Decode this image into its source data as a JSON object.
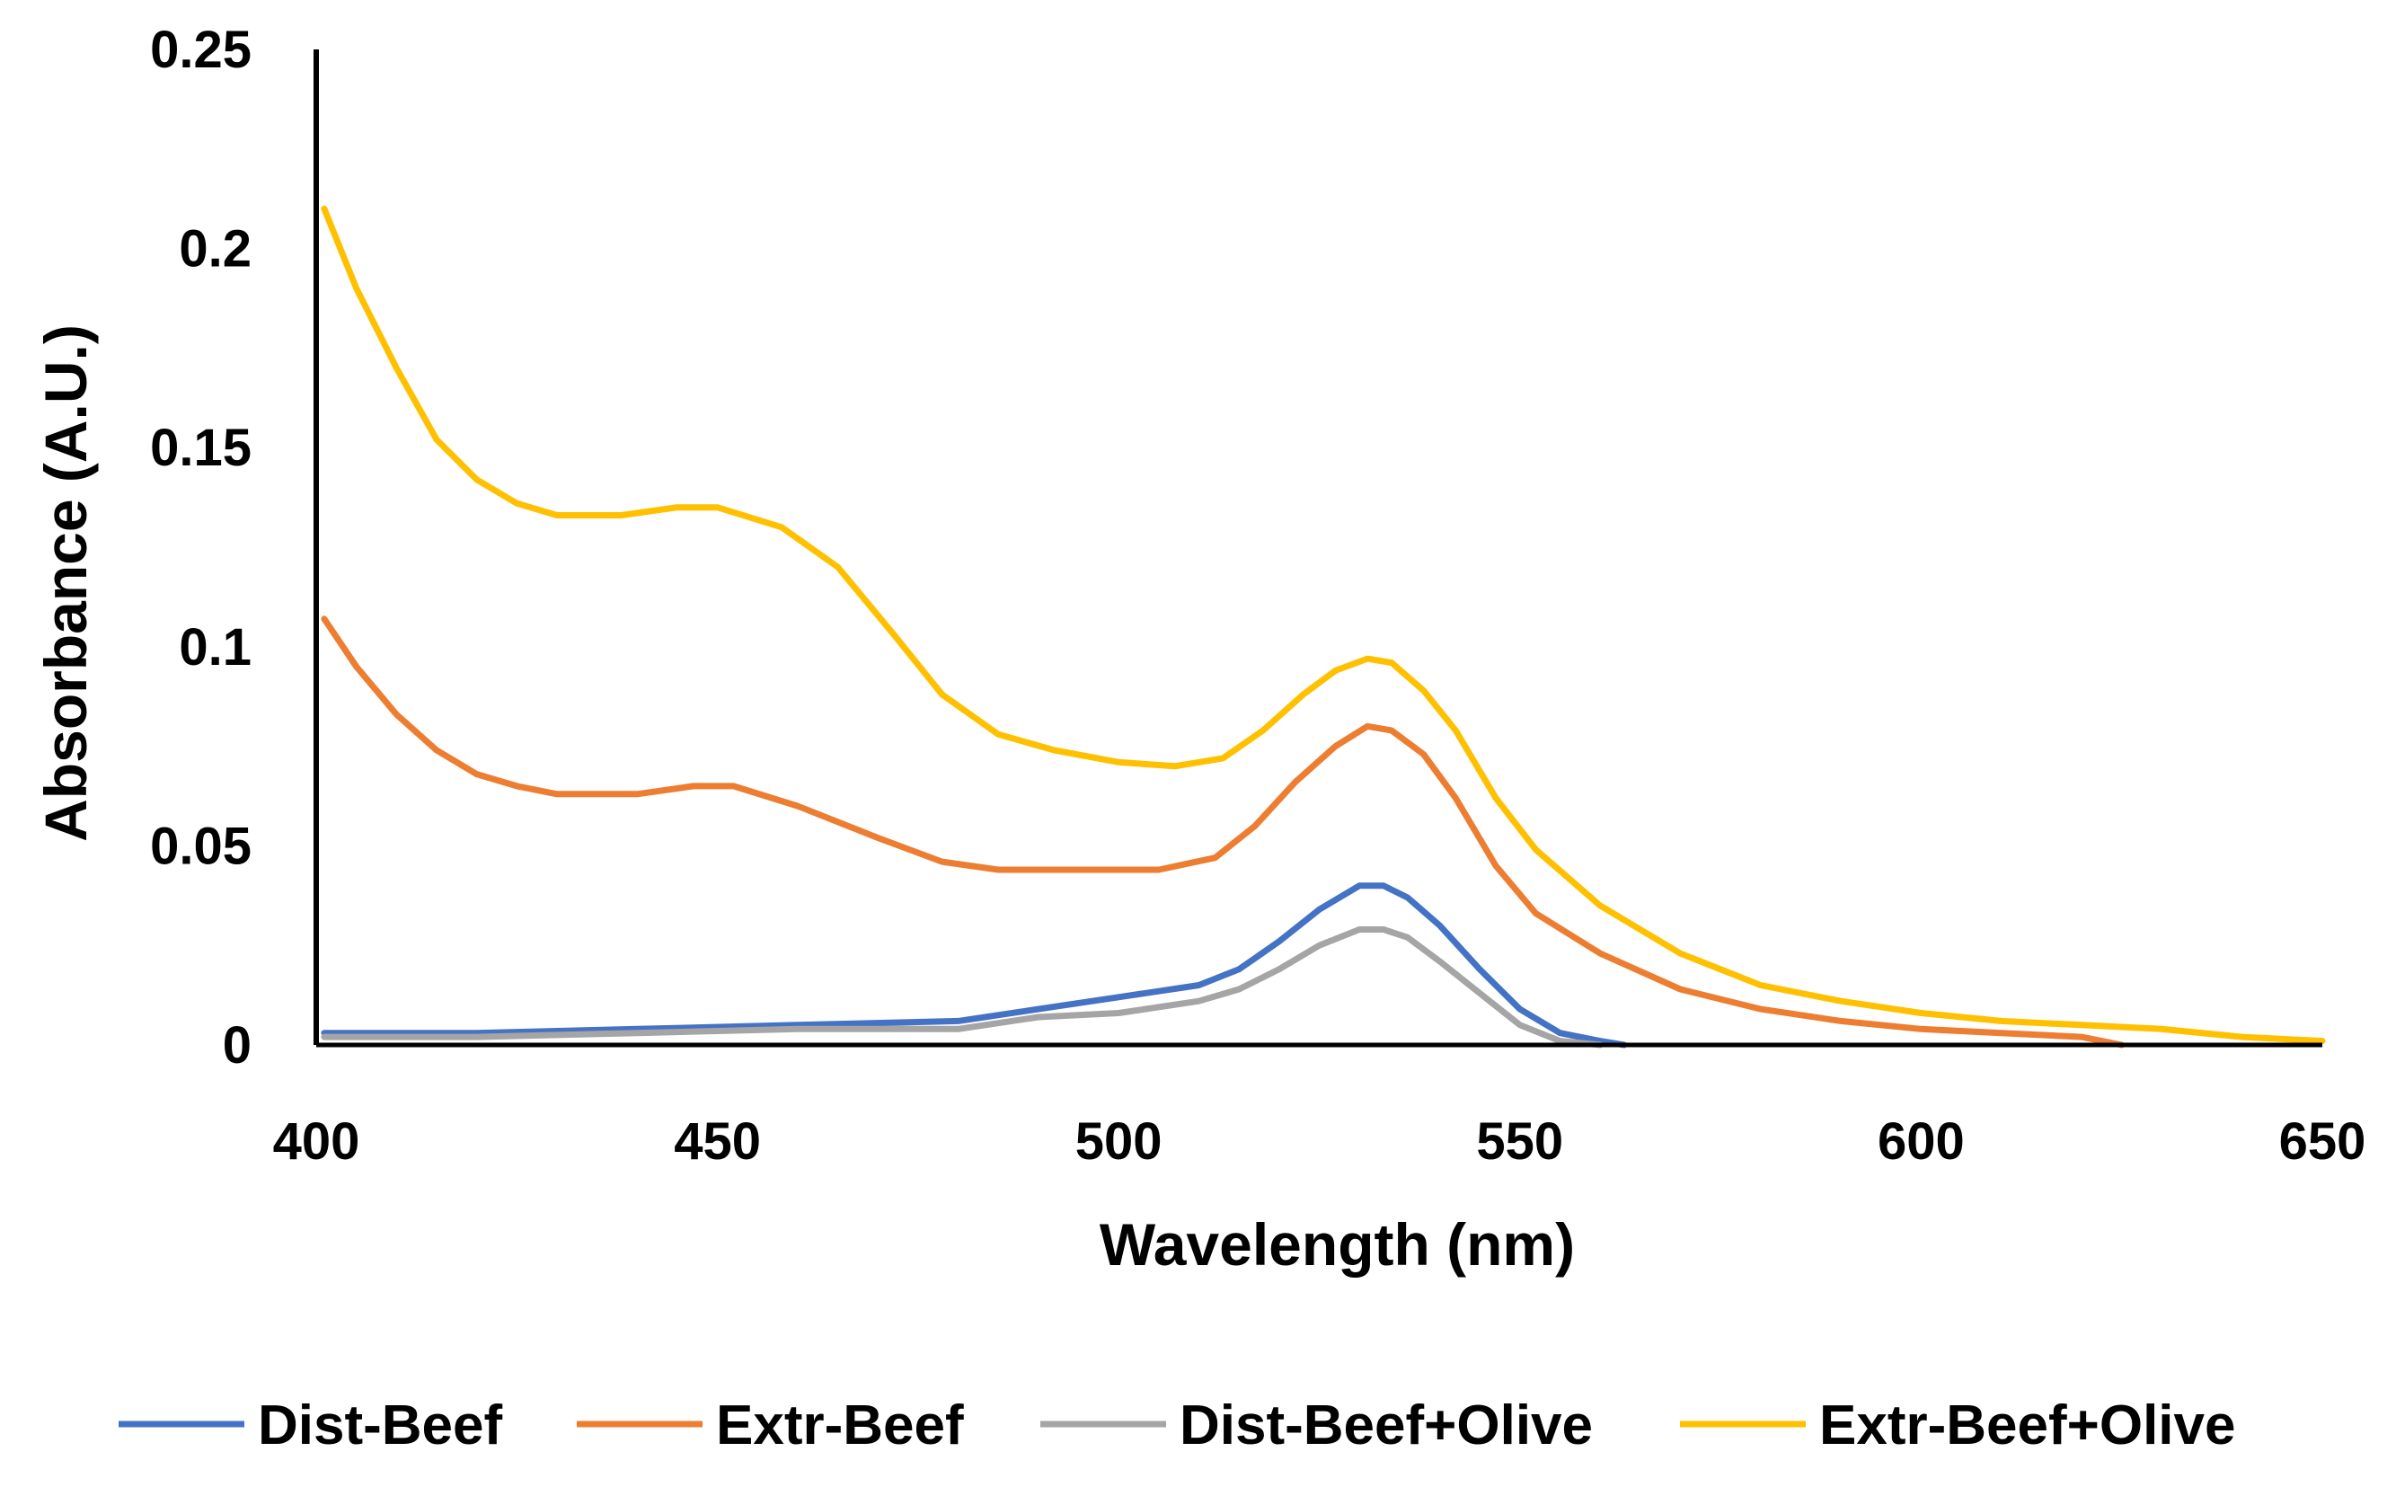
{
  "chart_data": {
    "type": "line",
    "title": "",
    "xlabel": "Wavelength (nm)",
    "ylabel": "Absorbance (A.U.)",
    "xlim": [
      400,
      650
    ],
    "ylim": [
      0,
      0.25
    ],
    "x_ticks": [
      "400",
      "450",
      "500",
      "550",
      "600",
      "650"
    ],
    "x_tick_values": [
      400,
      450,
      500,
      550,
      600,
      650
    ],
    "y_ticks": [
      "0",
      "0.05",
      "0.1",
      "0.15",
      "0.2",
      "0.25"
    ],
    "y_tick_values": [
      0,
      0.05,
      0.1,
      0.15,
      0.2,
      0.25
    ],
    "grid": false,
    "legend_position": "bottom",
    "series": [
      {
        "name": "Dist-Beef",
        "color": "#4472C4",
        "points": [
          [
            401,
            0.003
          ],
          [
            420,
            0.003
          ],
          [
            440,
            0.004
          ],
          [
            460,
            0.005
          ],
          [
            480,
            0.006
          ],
          [
            490,
            0.009
          ],
          [
            500,
            0.012
          ],
          [
            510,
            0.015
          ],
          [
            515,
            0.019
          ],
          [
            520,
            0.026
          ],
          [
            525,
            0.034
          ],
          [
            530,
            0.04
          ],
          [
            533,
            0.04
          ],
          [
            536,
            0.037
          ],
          [
            540,
            0.03
          ],
          [
            545,
            0.019
          ],
          [
            550,
            0.009
          ],
          [
            555,
            0.003
          ],
          [
            560,
            0.001
          ],
          [
            563,
            0.0
          ]
        ]
      },
      {
        "name": "Extr-Beef",
        "color": "#ED7D31",
        "points": [
          [
            401,
            0.107
          ],
          [
            405,
            0.095
          ],
          [
            410,
            0.083
          ],
          [
            415,
            0.074
          ],
          [
            420,
            0.068
          ],
          [
            425,
            0.065
          ],
          [
            430,
            0.063
          ],
          [
            440,
            0.063
          ],
          [
            447,
            0.065
          ],
          [
            452,
            0.065
          ],
          [
            460,
            0.06
          ],
          [
            470,
            0.052
          ],
          [
            478,
            0.046
          ],
          [
            485,
            0.044
          ],
          [
            495,
            0.044
          ],
          [
            505,
            0.044
          ],
          [
            512,
            0.047
          ],
          [
            517,
            0.055
          ],
          [
            522,
            0.066
          ],
          [
            527,
            0.075
          ],
          [
            531,
            0.08
          ],
          [
            534,
            0.079
          ],
          [
            538,
            0.073
          ],
          [
            542,
            0.062
          ],
          [
            547,
            0.045
          ],
          [
            552,
            0.033
          ],
          [
            560,
            0.023
          ],
          [
            570,
            0.014
          ],
          [
            580,
            0.009
          ],
          [
            590,
            0.006
          ],
          [
            600,
            0.004
          ],
          [
            610,
            0.003
          ],
          [
            620,
            0.002
          ],
          [
            625,
            0.0
          ]
        ]
      },
      {
        "name": "Dist-Beef+Olive",
        "color": "#A5A5A5",
        "points": [
          [
            401,
            0.002
          ],
          [
            420,
            0.002
          ],
          [
            440,
            0.003
          ],
          [
            460,
            0.004
          ],
          [
            480,
            0.004
          ],
          [
            490,
            0.007
          ],
          [
            500,
            0.008
          ],
          [
            510,
            0.011
          ],
          [
            515,
            0.014
          ],
          [
            520,
            0.019
          ],
          [
            525,
            0.025
          ],
          [
            530,
            0.029
          ],
          [
            533,
            0.029
          ],
          [
            536,
            0.027
          ],
          [
            540,
            0.021
          ],
          [
            545,
            0.013
          ],
          [
            550,
            0.005
          ],
          [
            555,
            0.001
          ],
          [
            560,
            0.0
          ]
        ]
      },
      {
        "name": "Extr-Beef+Olive",
        "color": "#FFC000",
        "points": [
          [
            401,
            0.21
          ],
          [
            405,
            0.19
          ],
          [
            410,
            0.17
          ],
          [
            415,
            0.152
          ],
          [
            420,
            0.142
          ],
          [
            425,
            0.136
          ],
          [
            430,
            0.133
          ],
          [
            438,
            0.133
          ],
          [
            445,
            0.135
          ],
          [
            450,
            0.135
          ],
          [
            458,
            0.13
          ],
          [
            465,
            0.12
          ],
          [
            472,
            0.103
          ],
          [
            478,
            0.088
          ],
          [
            485,
            0.078
          ],
          [
            492,
            0.074
          ],
          [
            500,
            0.071
          ],
          [
            507,
            0.07
          ],
          [
            513,
            0.072
          ],
          [
            518,
            0.079
          ],
          [
            523,
            0.088
          ],
          [
            527,
            0.094
          ],
          [
            531,
            0.097
          ],
          [
            534,
            0.096
          ],
          [
            538,
            0.089
          ],
          [
            542,
            0.079
          ],
          [
            547,
            0.062
          ],
          [
            552,
            0.049
          ],
          [
            560,
            0.035
          ],
          [
            570,
            0.023
          ],
          [
            580,
            0.015
          ],
          [
            590,
            0.011
          ],
          [
            600,
            0.008
          ],
          [
            610,
            0.006
          ],
          [
            620,
            0.005
          ],
          [
            630,
            0.004
          ],
          [
            640,
            0.002
          ],
          [
            650,
            0.001
          ]
        ]
      }
    ]
  }
}
